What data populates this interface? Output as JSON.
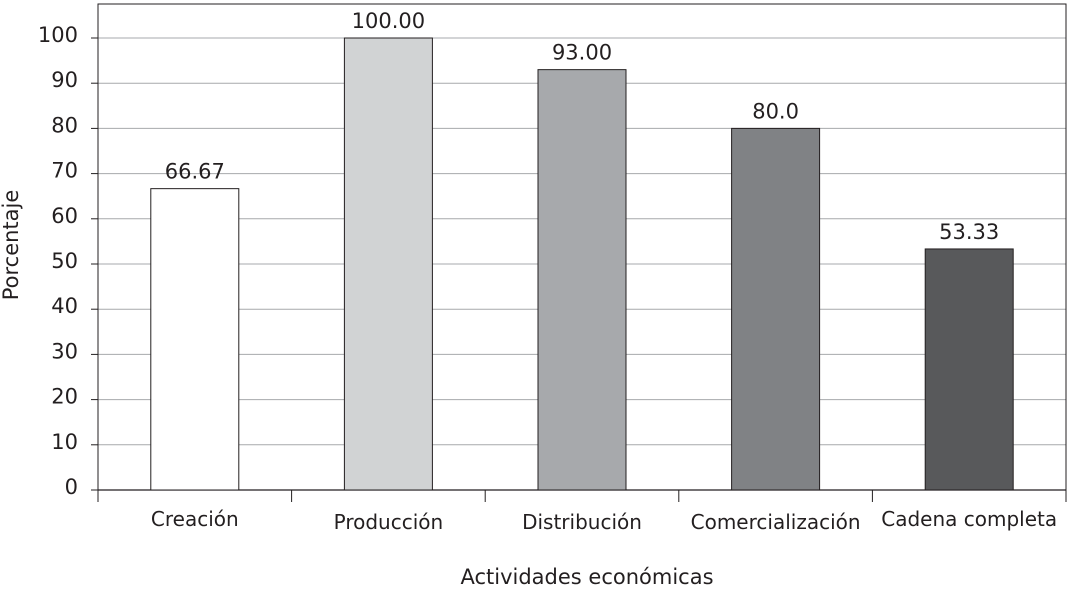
{
  "chart_data": {
    "type": "bar",
    "title": "",
    "xlabel": "Actividades económicas",
    "ylabel": "Porcentaje",
    "categories": [
      "Creación",
      "Producción",
      "Distribución",
      "Comercialización",
      "Cadena completa"
    ],
    "values": [
      66.67,
      100.0,
      93.0,
      80.0,
      53.33
    ],
    "value_labels": [
      "66.67",
      "100.00",
      "93.00",
      "80.0",
      "53.33"
    ],
    "bar_colors": [
      "#ffffff",
      "#d1d3d4",
      "#a7a9ac",
      "#808285",
      "#58595b"
    ],
    "ylim": [
      0,
      100
    ],
    "y_ticks": [
      "0",
      "10",
      "20",
      "30",
      "40",
      "50",
      "60",
      "70",
      "80",
      "90",
      "100"
    ],
    "grid": true,
    "legend": "none"
  }
}
